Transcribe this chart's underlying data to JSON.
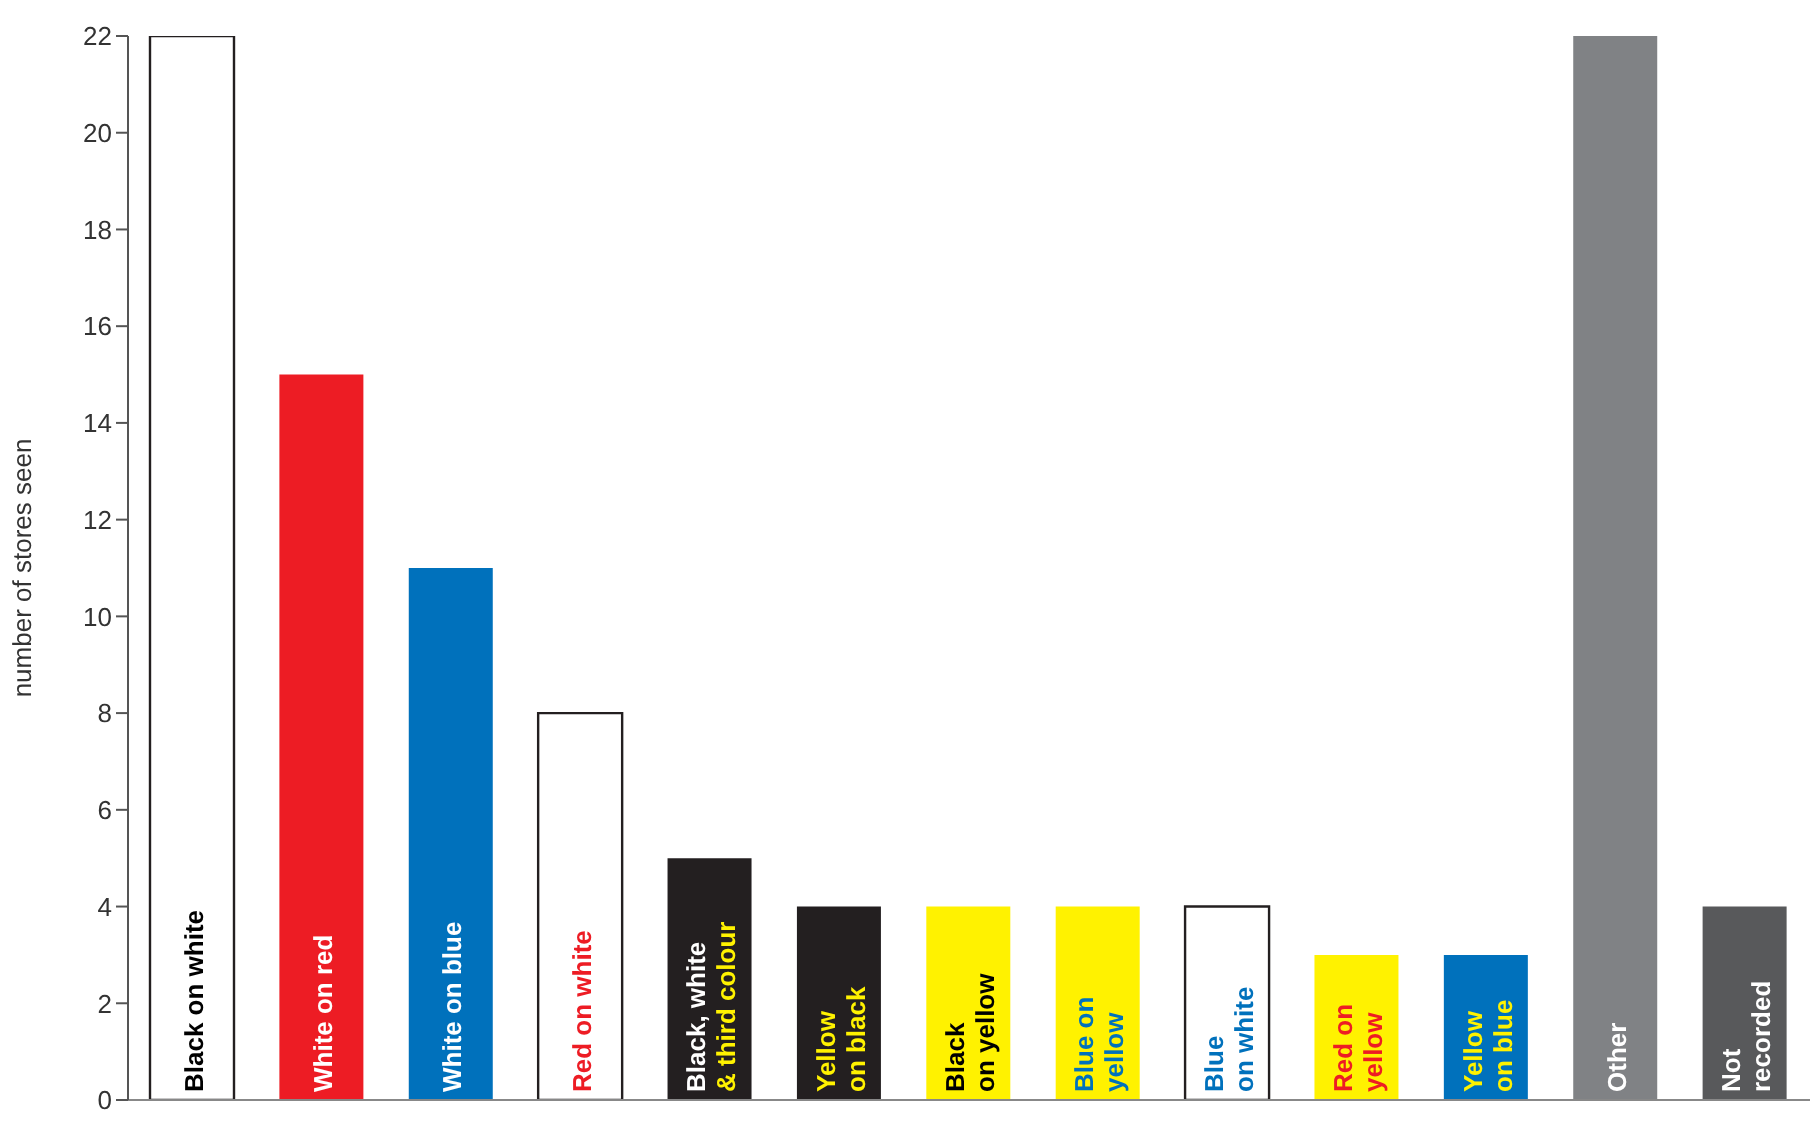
{
  "chart_data": {
    "type": "bar",
    "ylabel": "number of stores seen",
    "categories": [
      "Black on white",
      "White on red",
      "White on blue",
      "Red on white",
      "Black, white\n& third colour",
      "Yellow\non black",
      "Black\non yellow",
      "Blue on\nyellow",
      "Blue\non white",
      "Red on\nyellow",
      "Yellow\non blue",
      "Other",
      "Not\nrecorded"
    ],
    "values": [
      22,
      15,
      11,
      8,
      5,
      4,
      4,
      4,
      4,
      3,
      3,
      22,
      4
    ],
    "colors": [
      "#ffffff",
      "#ed1c24",
      "#0071bc",
      "#ffffff",
      "#231f20",
      "#231f20",
      "#fff200",
      "#fff200",
      "#ffffff",
      "#fff200",
      "#0071bc",
      "#808285",
      "#58595b"
    ],
    "ylim": [
      0,
      22
    ],
    "yticks": [
      0,
      2,
      4,
      6,
      8,
      10,
      12,
      14,
      16,
      18,
      20,
      22
    ],
    "grid": false,
    "legend": false
  }
}
